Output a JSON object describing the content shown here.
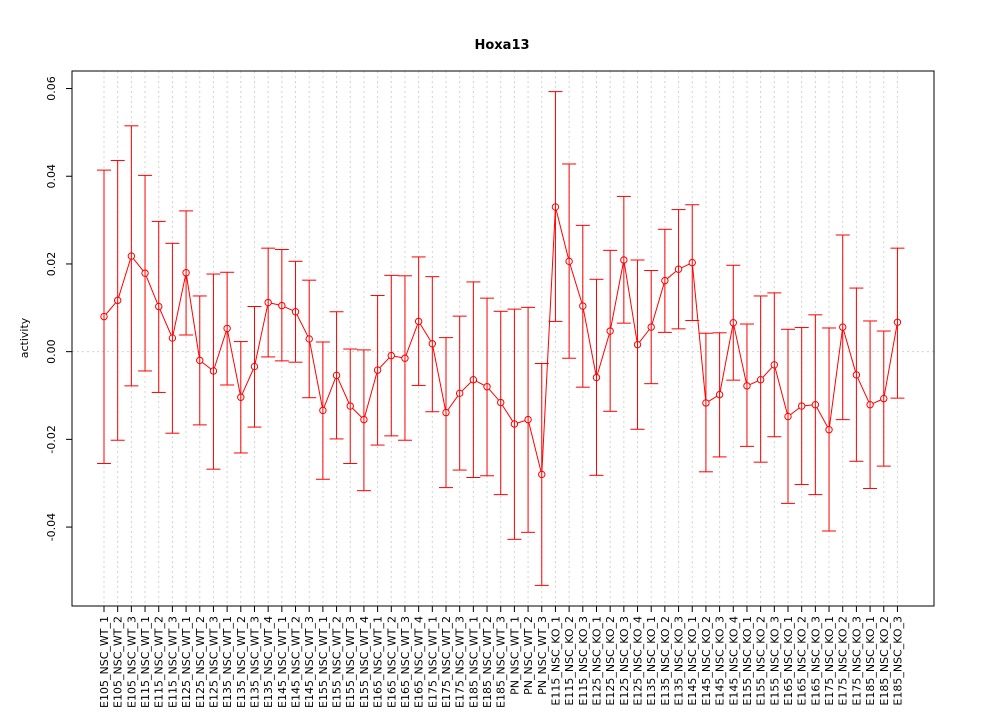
{
  "chart_data": {
    "type": "line",
    "title": "Hoxa13",
    "xlabel": "",
    "ylabel": "activity",
    "ylim": [
      -0.058,
      0.064
    ],
    "yticks": [
      -0.04,
      -0.02,
      0.0,
      0.02,
      0.04,
      0.06
    ],
    "ytick_labels": [
      "-0.04",
      "-0.02",
      "0.00",
      "0.02",
      "0.04",
      "0.06"
    ],
    "grid": true,
    "series_color": "#ff0000",
    "grid_color": "#d3d3d3",
    "categories": [
      "E105_NSC_WT_1",
      "E105_NSC_WT_2",
      "E105_NSC_WT_3",
      "E115_NSC_WT_1",
      "E115_NSC_WT_2",
      "E115_NSC_WT_3",
      "E125_NSC_WT_1",
      "E125_NSC_WT_2",
      "E125_NSC_WT_3",
      "E135_NSC_WT_1",
      "E135_NSC_WT_2",
      "E135_NSC_WT_3",
      "E135_NSC_WT_4",
      "E145_NSC_WT_1",
      "E145_NSC_WT_2",
      "E145_NSC_WT_3",
      "E155_NSC_WT_1",
      "E155_NSC_WT_2",
      "E155_NSC_WT_3",
      "E155_NSC_WT_4",
      "E165_NSC_WT_1",
      "E165_NSC_WT_2",
      "E165_NSC_WT_3",
      "E165_NSC_WT_4",
      "E175_NSC_WT_1",
      "E175_NSC_WT_2",
      "E175_NSC_WT_3",
      "E185_NSC_WT_1",
      "E185_NSC_WT_2",
      "E185_NSC_WT_3",
      "PN_NSC_WT_1",
      "PN_NSC_WT_2",
      "PN_NSC_WT_3",
      "E115_NSC_KO_1",
      "E115_NSC_KO_2",
      "E115_NSC_KO_3",
      "E125_NSC_KO_1",
      "E125_NSC_KO_2",
      "E125_NSC_KO_3",
      "E125_NSC_KO_4",
      "E135_NSC_KO_1",
      "E135_NSC_KO_2",
      "E135_NSC_KO_3",
      "E145_NSC_KO_1",
      "E145_NSC_KO_2",
      "E145_NSC_KO_3",
      "E145_NSC_KO_4",
      "E155_NSC_KO_1",
      "E155_NSC_KO_2",
      "E155_NSC_KO_3",
      "E165_NSC_KO_1",
      "E165_NSC_KO_2",
      "E165_NSC_KO_3",
      "E175_NSC_KO_1",
      "E175_NSC_KO_2",
      "E175_NSC_KO_3",
      "E185_NSC_KO_1",
      "E185_NSC_KO_2",
      "E185_NSC_KO_3"
    ],
    "values": [
      0.008,
      0.0117,
      0.0218,
      0.0179,
      0.0103,
      0.0031,
      0.018,
      -0.002,
      -0.0044,
      0.0053,
      -0.0104,
      -0.0034,
      0.0112,
      0.0105,
      0.0091,
      0.0029,
      -0.0134,
      -0.0054,
      -0.0124,
      -0.0155,
      -0.0042,
      -0.0009,
      -0.0015,
      0.0069,
      0.0018,
      -0.0139,
      -0.0095,
      -0.0064,
      -0.008,
      -0.0116,
      -0.0165,
      -0.0155,
      -0.028,
      0.033,
      0.0206,
      0.0104,
      -0.0059,
      0.0047,
      0.0209,
      0.0016,
      0.0056,
      0.0162,
      0.0188,
      0.0203,
      -0.0117,
      -0.0098,
      0.0066,
      -0.0078,
      -0.0064,
      -0.003,
      -0.0148,
      -0.0124,
      -0.0121,
      -0.0178,
      0.0056,
      -0.0053,
      -0.0121,
      -0.0107,
      0.0067
    ],
    "lower": [
      -0.0255,
      -0.0202,
      -0.0078,
      -0.0044,
      -0.0093,
      -0.0186,
      0.0038,
      -0.0167,
      -0.0268,
      -0.0076,
      -0.0231,
      -0.0172,
      -0.0012,
      -0.0021,
      -0.0024,
      -0.0105,
      -0.0291,
      -0.0199,
      -0.0255,
      -0.0317,
      -0.0213,
      -0.0192,
      -0.0202,
      -0.0077,
      -0.0137,
      -0.031,
      -0.027,
      -0.0287,
      -0.0283,
      -0.0326,
      -0.0428,
      -0.0412,
      -0.0533,
      0.0069,
      -0.0015,
      -0.0081,
      -0.0282,
      -0.0136,
      0.0065,
      -0.0177,
      -0.0073,
      0.0044,
      0.0052,
      0.0071,
      -0.0274,
      -0.024,
      -0.0065,
      -0.0216,
      -0.0252,
      -0.0194,
      -0.0346,
      -0.0303,
      -0.0326,
      -0.0409,
      -0.0155,
      -0.025,
      -0.0312,
      -0.0261,
      -0.0106
    ],
    "upper": [
      0.0414,
      0.0436,
      0.0515,
      0.0402,
      0.0297,
      0.0247,
      0.0321,
      0.0127,
      0.0177,
      0.0181,
      0.0023,
      0.0103,
      0.0236,
      0.0233,
      0.0206,
      0.0163,
      0.0022,
      0.0091,
      0.0006,
      0.0004,
      0.0128,
      0.0174,
      0.0173,
      0.0216,
      0.0171,
      0.0032,
      0.0081,
      0.0159,
      0.0122,
      0.0092,
      0.0097,
      0.0101,
      -0.0027,
      0.0593,
      0.0428,
      0.0288,
      0.0165,
      0.0231,
      0.0354,
      0.0209,
      0.0185,
      0.0279,
      0.0324,
      0.0335,
      0.0042,
      0.0043,
      0.0197,
      0.0063,
      0.0127,
      0.0134,
      0.0051,
      0.0055,
      0.0084,
      0.0054,
      0.0266,
      0.0145,
      0.007,
      0.0047,
      0.0236
    ]
  }
}
